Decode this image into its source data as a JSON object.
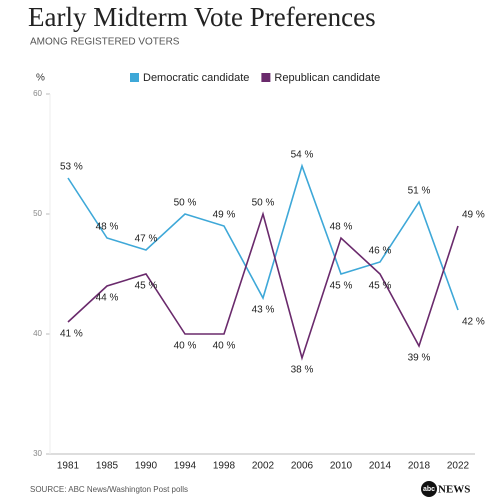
{
  "chart_data": {
    "type": "line",
    "title": "Early Midterm Vote Preferences",
    "subtitle": "AMONG REGISTERED VOTERS",
    "y_label": "%",
    "categories": [
      "1981",
      "1985",
      "1990",
      "1994",
      "1998",
      "2002",
      "2006",
      "2010",
      "2014",
      "2018",
      "2022"
    ],
    "series": [
      {
        "name": "Democratic candidate",
        "color": "#3ea8d8",
        "values": [
          53,
          48,
          47,
          50,
          49,
          43,
          54,
          45,
          46,
          51,
          42
        ],
        "value_labels": [
          "53 %",
          "48 %",
          "47 %",
          "50 %",
          "49 %",
          "43 %",
          "54 %",
          "45 %",
          "46 %",
          "51 %",
          "42 %"
        ]
      },
      {
        "name": "Republican candidate",
        "color": "#6a2a6c",
        "values": [
          41,
          44,
          45,
          40,
          40,
          50,
          38,
          48,
          45,
          39,
          49
        ],
        "value_labels": [
          "41 %",
          "44 %",
          "45 %",
          "40 %",
          "40 %",
          "50 %",
          "38 %",
          "48 %",
          "45 %",
          "39 %",
          "49 %"
        ]
      }
    ],
    "ylim": [
      30,
      60
    ],
    "yticks": [
      30,
      40,
      50,
      60
    ],
    "legend": "top",
    "source": "SOURCE: ABC News/Washington Post polls",
    "logo": [
      "abc",
      "NEWS"
    ]
  }
}
